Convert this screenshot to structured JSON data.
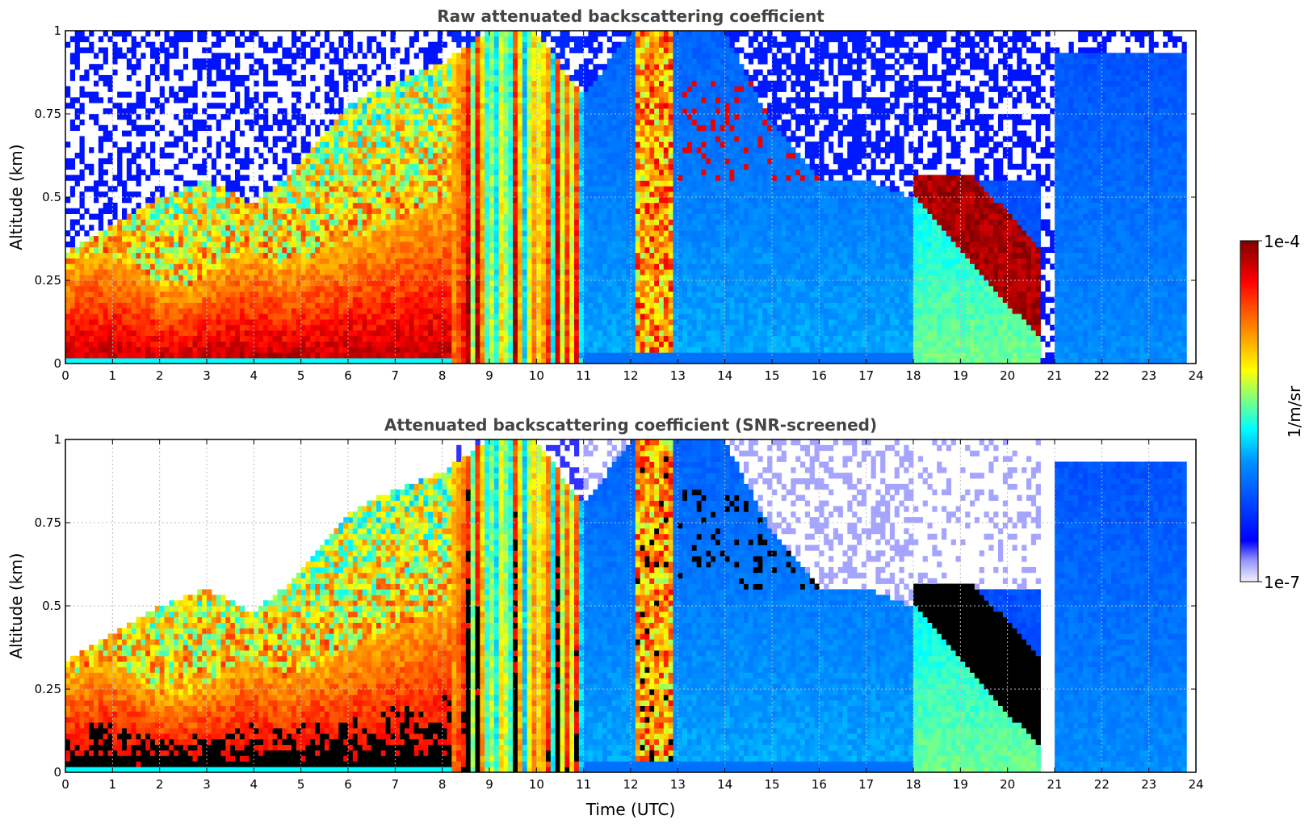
{
  "chart_data": [
    {
      "type": "heatmap",
      "title": "Raw attenuated backscattering coefficient",
      "xlabel": "",
      "ylabel": "Altitude (km)",
      "xlim": [
        0,
        24
      ],
      "ylim": [
        0,
        1
      ],
      "xticks": [
        "0",
        "1",
        "2",
        "3",
        "4",
        "5",
        "6",
        "7",
        "8",
        "9",
        "10",
        "11",
        "12",
        "13",
        "14",
        "15",
        "16",
        "17",
        "18",
        "19",
        "20",
        "21",
        "22",
        "23",
        "24"
      ],
      "yticks": [
        "0",
        "0.25",
        "0.5",
        "0.75",
        "1"
      ],
      "yticks_values": [
        0,
        0.25,
        0.5,
        0.75,
        1
      ],
      "grid": true,
      "screened": false
    },
    {
      "type": "heatmap",
      "title": "Attenuated backscattering coefficient (SNR-screened)",
      "xlabel": "Time (UTC)",
      "ylabel": "Altitude (km)",
      "xlim": [
        0,
        24
      ],
      "ylim": [
        0,
        1
      ],
      "xticks": [
        "0",
        "1",
        "2",
        "3",
        "4",
        "5",
        "6",
        "7",
        "8",
        "9",
        "10",
        "11",
        "12",
        "13",
        "14",
        "15",
        "16",
        "17",
        "18",
        "19",
        "20",
        "21",
        "22",
        "23",
        "24"
      ],
      "yticks": [
        "0",
        "0.25",
        "0.5",
        "0.75",
        "1"
      ],
      "yticks_values": [
        0,
        0.25,
        0.5,
        0.75,
        1
      ],
      "grid": true,
      "screened": true
    }
  ],
  "colorbar": {
    "max_label": "1e-4",
    "min_label": "1e-7",
    "unit_label": "1/m/sr",
    "colormap": "jet",
    "colors": [
      "#f0f0ff",
      "#0000ff",
      "#00a0ff",
      "#00ffff",
      "#ffff00",
      "#ff8000",
      "#ff0000",
      "#800000"
    ]
  }
}
